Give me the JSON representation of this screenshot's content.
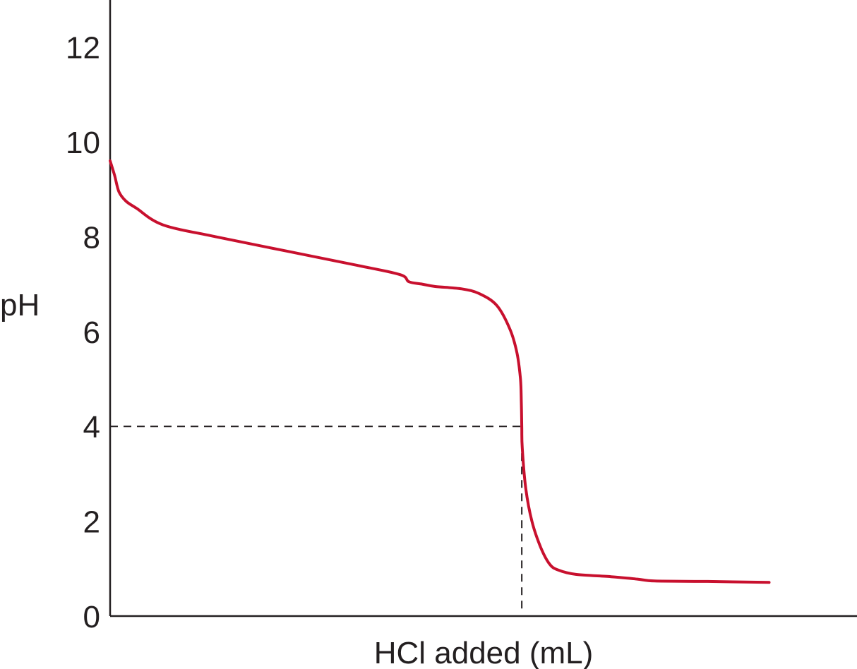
{
  "chart_data": {
    "type": "line",
    "title": "",
    "xlabel": "HCl added (mL)",
    "ylabel": "pH",
    "ylim": [
      0,
      13
    ],
    "yticks": [
      0,
      2,
      4,
      6,
      8,
      10,
      12
    ],
    "grid": false,
    "series": [
      {
        "color": "#c8102e",
        "points": [
          [
            0,
            9.6
          ],
          [
            0.5,
            9.3
          ],
          [
            1.0,
            8.95
          ],
          [
            1.8,
            8.75
          ],
          [
            3.0,
            8.6
          ],
          [
            6.0,
            8.25
          ],
          [
            12.0,
            8.0
          ],
          [
            20.0,
            7.7
          ],
          [
            28.0,
            7.4
          ],
          [
            33.0,
            7.2
          ],
          [
            34.0,
            7.05
          ],
          [
            35.5,
            7.0
          ],
          [
            37.0,
            6.95
          ],
          [
            40.0,
            6.9
          ],
          [
            42.0,
            6.8
          ],
          [
            44.0,
            6.55
          ],
          [
            45.5,
            6.05
          ],
          [
            46.3,
            5.55
          ],
          [
            46.7,
            5.0
          ],
          [
            46.8,
            4.5
          ],
          [
            46.85,
            4.0
          ],
          [
            46.9,
            3.55
          ],
          [
            47.3,
            2.7
          ],
          [
            48.0,
            2.0
          ],
          [
            49.0,
            1.45
          ],
          [
            50.0,
            1.1
          ],
          [
            51.0,
            0.97
          ],
          [
            53.0,
            0.88
          ],
          [
            57.0,
            0.83
          ],
          [
            60.0,
            0.78
          ],
          [
            62.0,
            0.74
          ],
          [
            68.0,
            0.73
          ],
          [
            75.0,
            0.71
          ]
        ]
      }
    ],
    "annotation": {
      "type": "dashed-guide",
      "y": 4,
      "x": 46.85
    },
    "xlim": [
      0,
      85
    ]
  }
}
